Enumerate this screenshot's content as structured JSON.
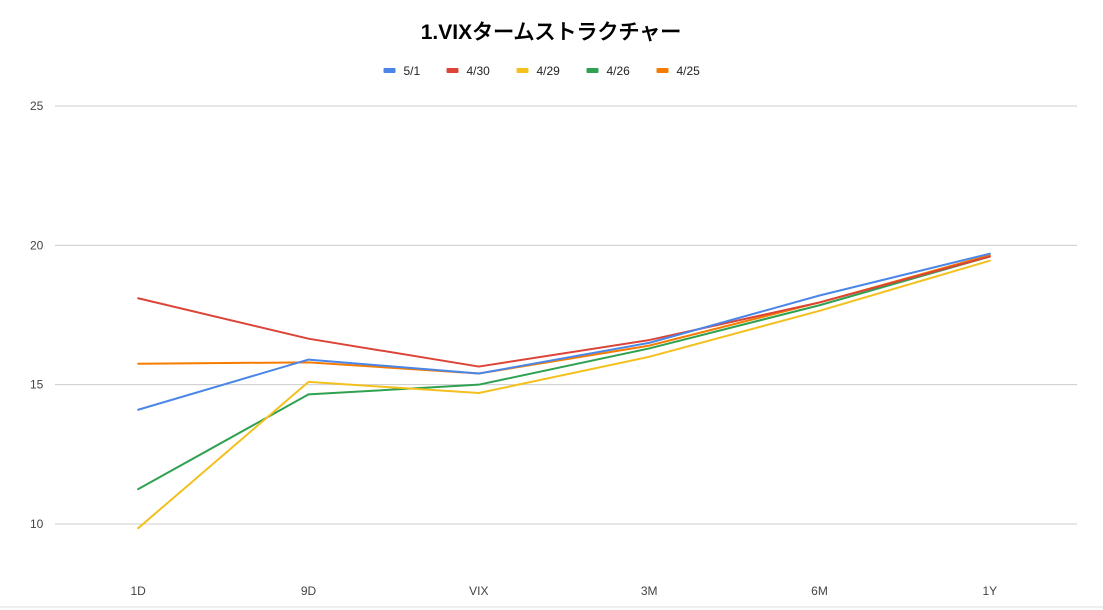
{
  "chart_data": {
    "type": "line",
    "title": "1.VIXタームストラクチャー",
    "xlabel": "",
    "ylabel": "",
    "categories": [
      "1D",
      "9D",
      "VIX",
      "3M",
      "6M",
      "1Y"
    ],
    "ylim": [
      8.5,
      25
    ],
    "yticks": [
      10,
      15,
      20,
      25
    ],
    "grid": true,
    "legend_position": "top",
    "series": [
      {
        "name": "5/1",
        "color": "#4a86e8",
        "values": [
          14.1,
          15.9,
          15.4,
          16.5,
          18.2,
          19.7
        ]
      },
      {
        "name": "4/30",
        "color": "#db4437",
        "values": [
          18.1,
          16.65,
          15.65,
          16.6,
          17.95,
          19.6
        ]
      },
      {
        "name": "4/29",
        "color": "#f4c01e",
        "values": [
          9.85,
          15.1,
          14.7,
          16.0,
          17.65,
          19.45
        ]
      },
      {
        "name": "4/26",
        "color": "#2fa150",
        "values": [
          11.25,
          14.65,
          15.0,
          16.3,
          17.85,
          19.6
        ]
      },
      {
        "name": "4/25",
        "color": "#f57c00",
        "values": [
          15.75,
          15.8,
          15.4,
          16.4,
          17.95,
          19.65
        ]
      }
    ]
  }
}
